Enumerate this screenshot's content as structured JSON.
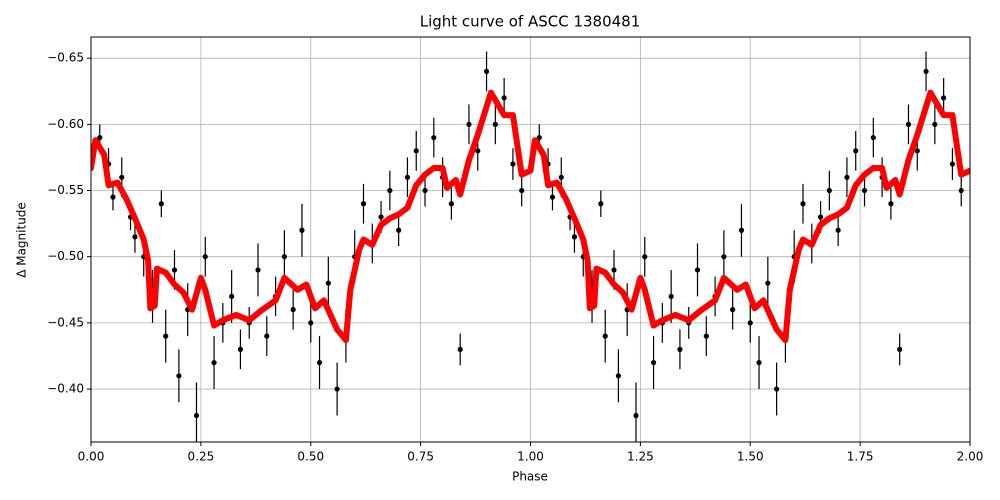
{
  "chart_data": {
    "type": "scatter",
    "title": "Light curve of ASCC 1380481",
    "x_label": "Phase",
    "y_label": "Δ Magnitude",
    "xlim": [
      0,
      2
    ],
    "ylim": [
      -0.36,
      -0.666
    ],
    "xticks": [
      {
        "value": 0,
        "label": "0.00"
      },
      {
        "value": 0.25,
        "label": "0.25"
      },
      {
        "value": 0.5,
        "label": "0.50"
      },
      {
        "value": 0.75,
        "label": "0.75"
      },
      {
        "value": 1,
        "label": "1.00"
      },
      {
        "value": 1.25,
        "label": "1.25"
      },
      {
        "value": 1.5,
        "label": "1.50"
      },
      {
        "value": 1.75,
        "label": "1.75"
      },
      {
        "value": 2,
        "label": "2.00"
      }
    ],
    "yticks": [
      {
        "value": -0.65,
        "label": "−0.65"
      },
      {
        "value": -0.6,
        "label": "−0.60"
      },
      {
        "value": -0.55,
        "label": "−0.55"
      },
      {
        "value": -0.5,
        "label": "−0.50"
      },
      {
        "value": -0.45,
        "label": "−0.45"
      },
      {
        "value": -0.4,
        "label": "−0.40"
      }
    ],
    "grid": true,
    "points": {
      "color": "#000000",
      "x": [
        0.02,
        0.04,
        0.05,
        0.07,
        0.09,
        0.1,
        0.12,
        0.14,
        0.16,
        0.17,
        0.19,
        0.2,
        0.22,
        0.24,
        0.26,
        0.28,
        0.3,
        0.32,
        0.34,
        0.36,
        0.38,
        0.4,
        0.42,
        0.44,
        0.46,
        0.48,
        0.5,
        0.52,
        0.54,
        0.56,
        0.58,
        0.6,
        0.62,
        0.64,
        0.66,
        0.68,
        0.7,
        0.72,
        0.74,
        0.76,
        0.78,
        0.8,
        0.82,
        0.84,
        0.86,
        0.88,
        0.9,
        0.92,
        0.94,
        0.96,
        0.98,
        1.02,
        1.04,
        1.05,
        1.07,
        1.09,
        1.1,
        1.12,
        1.14,
        1.16,
        1.17,
        1.19,
        1.2,
        1.22,
        1.24,
        1.26,
        1.28,
        1.3,
        1.32,
        1.34,
        1.36,
        1.38,
        1.4,
        1.42,
        1.44,
        1.46,
        1.48,
        1.5,
        1.52,
        1.54,
        1.56,
        1.58,
        1.6,
        1.62,
        1.64,
        1.66,
        1.68,
        1.7,
        1.72,
        1.74,
        1.76,
        1.78,
        1.8,
        1.82,
        1.84,
        1.86,
        1.88,
        1.9,
        1.92,
        1.94,
        1.96,
        1.98
      ],
      "y": [
        -0.59,
        -0.57,
        -0.545,
        -0.56,
        -0.53,
        -0.515,
        -0.5,
        -0.47,
        -0.54,
        -0.44,
        -0.49,
        -0.41,
        -0.46,
        -0.38,
        -0.5,
        -0.42,
        -0.45,
        -0.47,
        -0.43,
        -0.45,
        -0.49,
        -0.44,
        -0.47,
        -0.5,
        -0.46,
        -0.52,
        -0.45,
        -0.42,
        -0.48,
        -0.4,
        -0.44,
        -0.5,
        -0.54,
        -0.51,
        -0.53,
        -0.55,
        -0.52,
        -0.56,
        -0.58,
        -0.55,
        -0.59,
        -0.56,
        -0.54,
        -0.43,
        -0.6,
        -0.58,
        -0.64,
        -0.6,
        -0.62,
        -0.57,
        -0.55,
        -0.59,
        -0.57,
        -0.545,
        -0.56,
        -0.53,
        -0.515,
        -0.5,
        -0.47,
        -0.54,
        -0.44,
        -0.49,
        -0.41,
        -0.46,
        -0.38,
        -0.5,
        -0.42,
        -0.45,
        -0.47,
        -0.43,
        -0.45,
        -0.49,
        -0.44,
        -0.47,
        -0.5,
        -0.46,
        -0.52,
        -0.45,
        -0.42,
        -0.48,
        -0.4,
        -0.44,
        -0.5,
        -0.54,
        -0.51,
        -0.53,
        -0.55,
        -0.52,
        -0.56,
        -0.58,
        -0.55,
        -0.59,
        -0.56,
        -0.54,
        -0.43,
        -0.6,
        -0.58,
        -0.64,
        -0.6,
        -0.62,
        -0.57,
        -0.55
      ],
      "err": [
        0.01,
        0.012,
        0.01,
        0.015,
        0.01,
        0.012,
        0.015,
        0.02,
        0.01,
        0.02,
        0.015,
        0.02,
        0.02,
        0.025,
        0.015,
        0.02,
        0.015,
        0.02,
        0.015,
        0.012,
        0.02,
        0.015,
        0.015,
        0.02,
        0.015,
        0.02,
        0.015,
        0.02,
        0.02,
        0.02,
        0.02,
        0.02,
        0.015,
        0.015,
        0.012,
        0.015,
        0.012,
        0.015,
        0.015,
        0.012,
        0.015,
        0.015,
        0.012,
        0.012,
        0.015,
        0.015,
        0.015,
        0.015,
        0.015,
        0.012,
        0.012,
        0.01,
        0.012,
        0.01,
        0.015,
        0.01,
        0.012,
        0.015,
        0.02,
        0.01,
        0.02,
        0.015,
        0.02,
        0.02,
        0.025,
        0.015,
        0.02,
        0.015,
        0.02,
        0.015,
        0.012,
        0.02,
        0.015,
        0.015,
        0.02,
        0.015,
        0.02,
        0.015,
        0.02,
        0.02,
        0.02,
        0.02,
        0.02,
        0.015,
        0.015,
        0.012,
        0.015,
        0.012,
        0.015,
        0.015,
        0.012,
        0.015,
        0.015,
        0.012,
        0.012,
        0.015,
        0.015,
        0.015,
        0.015,
        0.015,
        0.012,
        0.012
      ]
    },
    "model": {
      "color": "#ff0000",
      "x": [
        0.0,
        0.01,
        0.03,
        0.04,
        0.06,
        0.08,
        0.1,
        0.12,
        0.13,
        0.135,
        0.145,
        0.15,
        0.17,
        0.19,
        0.21,
        0.23,
        0.25,
        0.26,
        0.28,
        0.3,
        0.33,
        0.36,
        0.39,
        0.42,
        0.44,
        0.47,
        0.49,
        0.51,
        0.53,
        0.56,
        0.58,
        0.59,
        0.61,
        0.62,
        0.64,
        0.66,
        0.68,
        0.7,
        0.72,
        0.74,
        0.76,
        0.78,
        0.8,
        0.81,
        0.83,
        0.84,
        0.86,
        0.88,
        0.91,
        0.94,
        0.96,
        0.98,
        1.0,
        1.01,
        1.03,
        1.04,
        1.06,
        1.08,
        1.1,
        1.12,
        1.13,
        1.135,
        1.145,
        1.15,
        1.17,
        1.19,
        1.21,
        1.23,
        1.25,
        1.26,
        1.28,
        1.3,
        1.33,
        1.36,
        1.39,
        1.42,
        1.44,
        1.47,
        1.49,
        1.51,
        1.53,
        1.56,
        1.58,
        1.59,
        1.61,
        1.62,
        1.64,
        1.66,
        1.68,
        1.7,
        1.72,
        1.74,
        1.76,
        1.78,
        1.8,
        1.81,
        1.83,
        1.84,
        1.86,
        1.88,
        1.91,
        1.94,
        1.96,
        1.98,
        2.0
      ],
      "y": [
        -0.567,
        -0.588,
        -0.577,
        -0.554,
        -0.556,
        -0.544,
        -0.529,
        -0.513,
        -0.497,
        -0.461,
        -0.463,
        -0.491,
        -0.488,
        -0.479,
        -0.473,
        -0.46,
        -0.484,
        -0.475,
        -0.448,
        -0.452,
        -0.456,
        -0.452,
        -0.46,
        -0.467,
        -0.484,
        -0.475,
        -0.479,
        -0.461,
        -0.467,
        -0.445,
        -0.437,
        -0.475,
        -0.505,
        -0.513,
        -0.509,
        -0.524,
        -0.529,
        -0.532,
        -0.537,
        -0.554,
        -0.562,
        -0.567,
        -0.567,
        -0.552,
        -0.558,
        -0.547,
        -0.573,
        -0.592,
        -0.624,
        -0.607,
        -0.607,
        -0.562,
        -0.565,
        -0.588,
        -0.577,
        -0.554,
        -0.556,
        -0.544,
        -0.529,
        -0.513,
        -0.497,
        -0.461,
        -0.463,
        -0.491,
        -0.488,
        -0.479,
        -0.473,
        -0.46,
        -0.484,
        -0.475,
        -0.448,
        -0.452,
        -0.456,
        -0.452,
        -0.46,
        -0.467,
        -0.484,
        -0.475,
        -0.479,
        -0.461,
        -0.467,
        -0.445,
        -0.437,
        -0.475,
        -0.505,
        -0.513,
        -0.509,
        -0.524,
        -0.529,
        -0.532,
        -0.537,
        -0.554,
        -0.562,
        -0.567,
        -0.567,
        -0.552,
        -0.558,
        -0.547,
        -0.573,
        -0.592,
        -0.624,
        -0.607,
        -0.607,
        -0.562,
        -0.565
      ]
    }
  }
}
